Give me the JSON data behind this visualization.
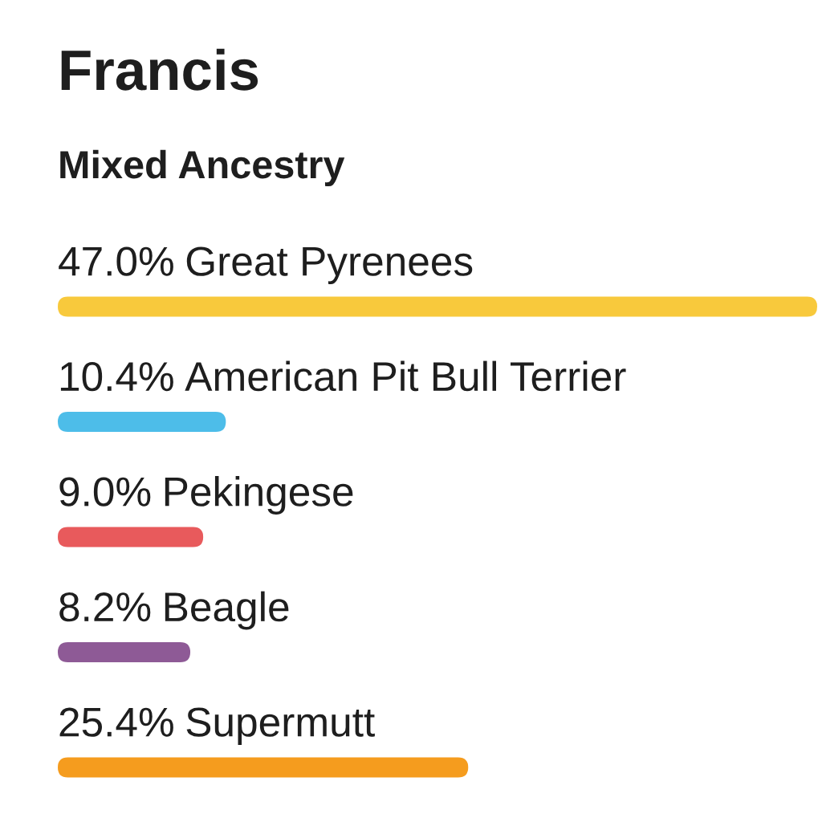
{
  "chart_data": {
    "type": "bar",
    "orientation": "horizontal",
    "title": "Francis",
    "subtitle": "Mixed Ancestry",
    "categories": [
      "Great Pyrenees",
      "American Pit Bull Terrier",
      "Pekingese",
      "Beagle",
      "Supermutt"
    ],
    "values": [
      47.0,
      10.4,
      9.0,
      8.2,
      25.4
    ],
    "colors": [
      "#f8c93c",
      "#4dbde9",
      "#e85a5c",
      "#8e5a96",
      "#f59c1e"
    ],
    "value_labels": [
      "47.0%",
      "10.4%",
      "9.0%",
      "8.2%",
      "25.4%"
    ],
    "tick_labels": false
  }
}
